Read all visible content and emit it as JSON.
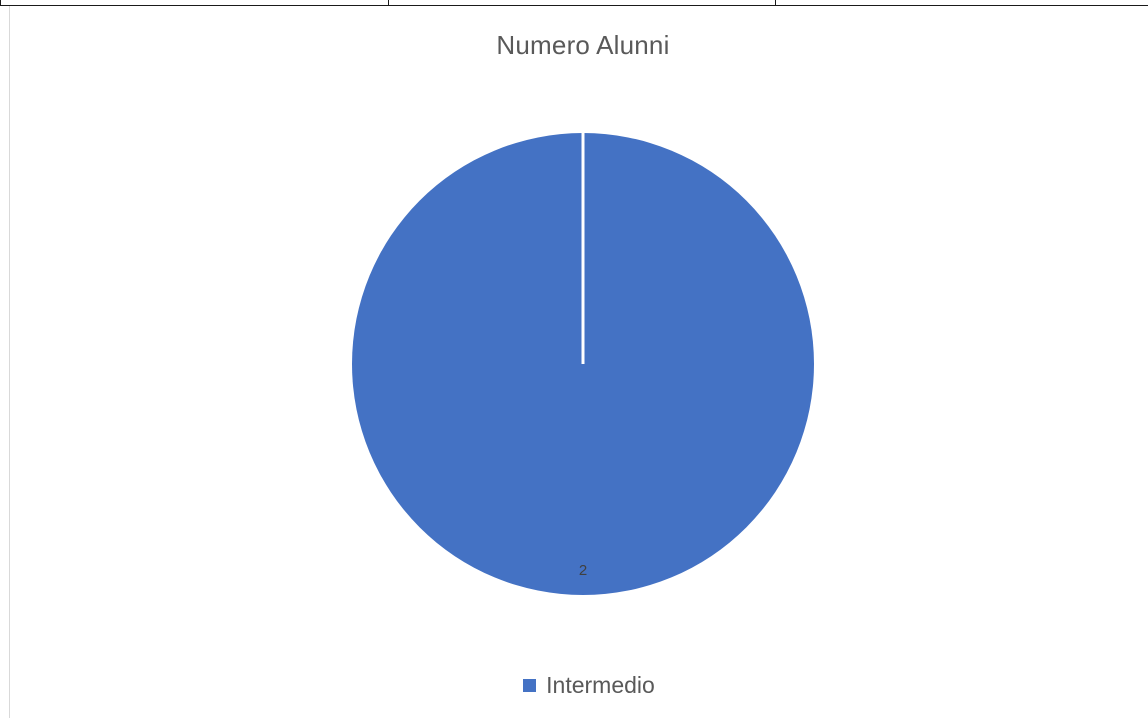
{
  "chart_data": {
    "type": "pie",
    "title": "Numero Alunni",
    "categories": [
      "Intermedio"
    ],
    "values": [
      2
    ],
    "data_labels": [
      "2"
    ],
    "colors": [
      "#4472c4"
    ],
    "legend_position": "bottom"
  },
  "legend": {
    "items": [
      {
        "label": "Intermedio",
        "color": "#4472c4"
      }
    ]
  }
}
